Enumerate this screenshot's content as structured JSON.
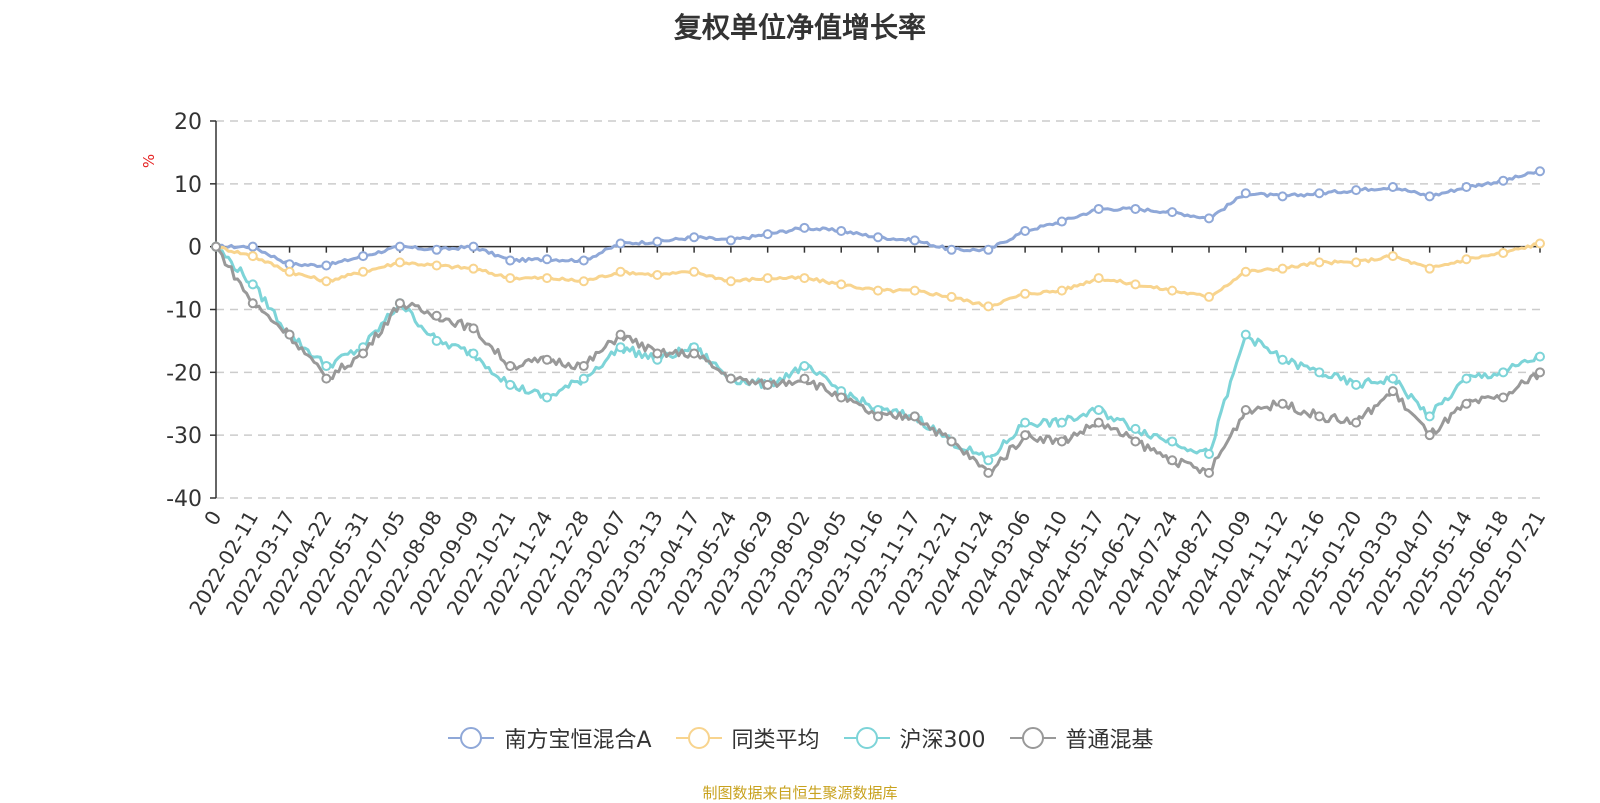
{
  "chart_data": {
    "type": "line",
    "title": "复权单位净值增长率",
    "unit_label": "%",
    "ylim": [
      -40,
      20
    ],
    "yticks": [
      20,
      10,
      0,
      -10,
      -20,
      -30,
      -40
    ],
    "grid": true,
    "legend_position": "bottom",
    "x_tick_labels": [
      "0",
      "2022-02-11",
      "2022-03-17",
      "2022-04-22",
      "2022-05-31",
      "2022-07-05",
      "2022-08-08",
      "2022-09-09",
      "2022-10-21",
      "2022-11-24",
      "2022-12-28",
      "2023-02-07",
      "2023-03-13",
      "2023-04-17",
      "2023-05-24",
      "2023-06-29",
      "2023-08-02",
      "2023-09-05",
      "2023-10-16",
      "2023-11-17",
      "2023-12-21",
      "2024-01-24",
      "2024-03-06",
      "2024-04-10",
      "2024-05-17",
      "2024-06-21",
      "2024-07-24",
      "2024-08-27",
      "2024-10-09",
      "2024-11-12",
      "2024-12-16",
      "2025-01-20",
      "2025-03-03",
      "2025-04-07",
      "2025-05-14",
      "2025-06-18",
      "2025-07-21"
    ],
    "series": [
      {
        "name": "南方宝恒混合A",
        "color": "#8fa8d8",
        "values": [
          0,
          0,
          -2.8,
          -3,
          -1.5,
          0,
          -0.5,
          0,
          -2.2,
          -2,
          -2.2,
          0.5,
          0.8,
          1.5,
          1,
          2,
          3,
          2.5,
          1.5,
          1,
          -0.5,
          -0.5,
          2.5,
          4,
          6,
          6,
          5.5,
          4.5,
          8.5,
          8,
          8.5,
          9,
          9.5,
          8,
          9.5,
          10.5,
          12
        ]
      },
      {
        "name": "同类平均",
        "color": "#f8d48e",
        "values": [
          0,
          -1.5,
          -4,
          -5.5,
          -4,
          -2.5,
          -3,
          -3.5,
          -5,
          -5,
          -5.5,
          -4,
          -4.5,
          -4,
          -5.5,
          -5,
          -5,
          -6,
          -7,
          -7,
          -8,
          -9.5,
          -7.5,
          -7,
          -5,
          -6,
          -7,
          -8,
          -4,
          -3.5,
          -2.5,
          -2.5,
          -1.5,
          -3.5,
          -2,
          -1,
          0.5
        ]
      },
      {
        "name": "沪深300",
        "color": "#7dd4d8",
        "values": [
          0,
          -6,
          -14,
          -19,
          -16,
          -9,
          -15,
          -17,
          -22,
          -24,
          -21,
          -16,
          -18,
          -16,
          -21,
          -22,
          -19,
          -23,
          -26,
          -27,
          -31,
          -34,
          -28,
          -28,
          -26,
          -29,
          -31,
          -33,
          -14,
          -18,
          -20,
          -22,
          -21,
          -27,
          -21,
          -20,
          -17.5
        ]
      },
      {
        "name": "普通混基",
        "color": "#999999",
        "values": [
          0,
          -9,
          -14,
          -21,
          -17,
          -9,
          -11,
          -13,
          -19,
          -18,
          -19,
          -14,
          -17,
          -17,
          -21,
          -22,
          -21,
          -24,
          -27,
          -27,
          -31,
          -36,
          -30,
          -31,
          -28,
          -31,
          -34,
          -36,
          -26,
          -25,
          -27,
          -28,
          -23,
          -30,
          -25,
          -24,
          -20
        ]
      }
    ],
    "source_note": "制图数据来自恒生聚源数据库"
  }
}
